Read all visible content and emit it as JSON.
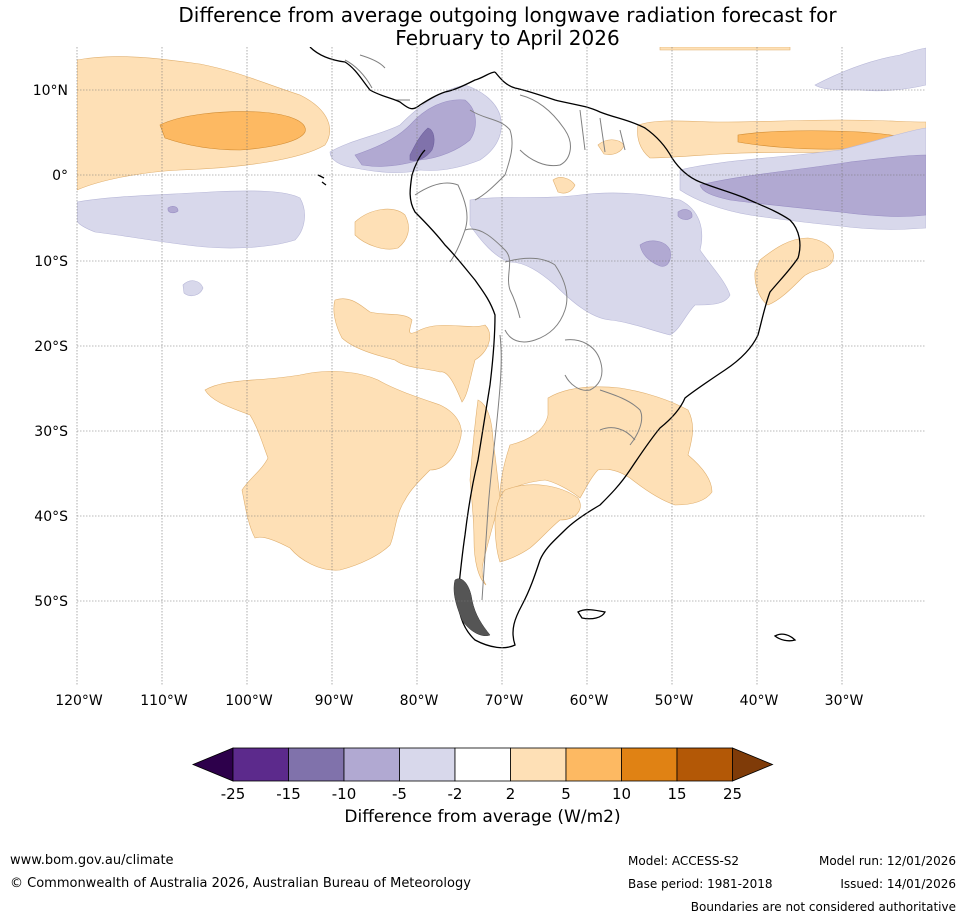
{
  "title_line1": "Difference from average outgoing longwave radiation forecast for",
  "title_line2": "February to April 2026",
  "lat_labels": [
    "10°N",
    "0°",
    "10°S",
    "20°S",
    "30°S",
    "40°S",
    "50°S"
  ],
  "lon_labels": [
    "120°W",
    "110°W",
    "100°W",
    "90°W",
    "80°W",
    "70°W",
    "60°W",
    "50°W",
    "40°W",
    "30°W"
  ],
  "chart_data": {
    "type": "map",
    "variable": "Difference from average outgoing longwave radiation",
    "units": "W/m2",
    "region": "South America and surrounding oceans",
    "extent": {
      "lon": [
        -120,
        -20
      ],
      "lat": [
        -60,
        15
      ]
    },
    "colorbar": {
      "ticks": [
        "-25",
        "-15",
        "-10",
        "-5",
        "-2",
        "2",
        "5",
        "10",
        "15",
        "25"
      ],
      "colors": [
        "#2d004b",
        "#5c2a8c",
        "#8072ab",
        "#b1a9d2",
        "#d8d8eb",
        "#ffffff",
        "#fee0b6",
        "#fdb962",
        "#e08214",
        "#b35806",
        "#7f3b08"
      ],
      "title": "Difference from average (W/m2)"
    }
  },
  "footer": {
    "website": "www.bom.gov.au/climate",
    "copyright": "© Commonwealth of Australia 2026, Australian Bureau of Meteorology",
    "model": "Model: ACCESS-S2",
    "base_period": "Base period: 1981-2018",
    "model_run": "Model run: 12/01/2026",
    "issued": "Issued: 14/01/2026",
    "disclaimer": "Boundaries are not considered authoritative"
  }
}
